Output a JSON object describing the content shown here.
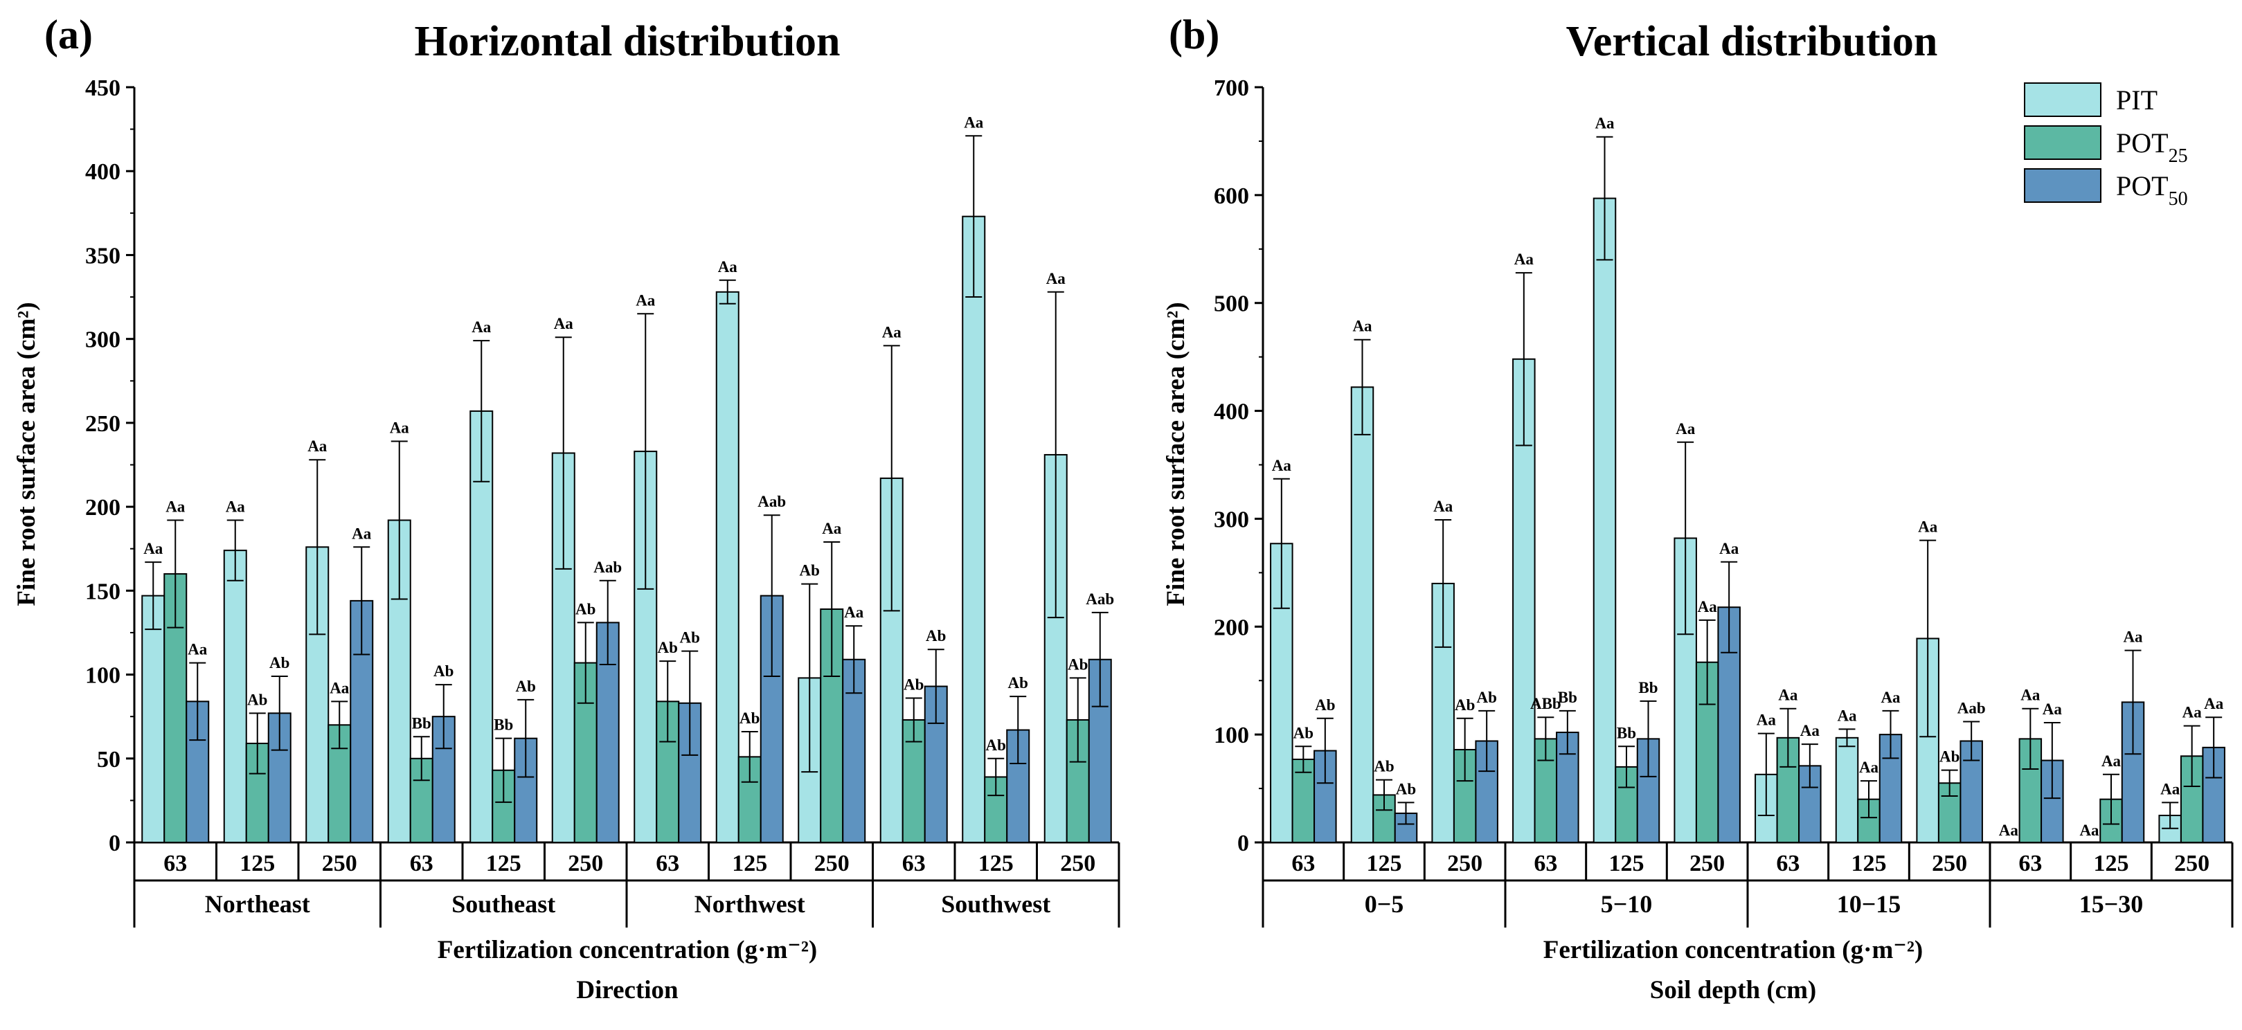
{
  "colors": {
    "PIT": "#a6e3e6",
    "POT25": "#5cb8a3",
    "POT50": "#5e93c0",
    "stroke": "#000000"
  },
  "legend": [
    {
      "key": "PIT",
      "base": "PIT",
      "sub": ""
    },
    {
      "key": "POT25",
      "base": "POT",
      "sub": "25"
    },
    {
      "key": "POT50",
      "base": "POT",
      "sub": "50"
    }
  ],
  "chart_data": [
    {
      "type": "bar",
      "panel": "(a)",
      "title": "Horizontal distribution",
      "ylabel": "Fine root surface area (cm²)",
      "xlabel": "Fertilization concentration (g·m⁻²)",
      "xlabel2": "Direction",
      "ylim": [
        0,
        450
      ],
      "yticks": [
        0,
        50,
        100,
        150,
        200,
        250,
        300,
        350,
        400,
        450
      ],
      "groups": [
        "Northeast",
        "Southeast",
        "Northwest",
        "Southwest"
      ],
      "categories": [
        "63",
        "125",
        "250",
        "63",
        "125",
        "250",
        "63",
        "125",
        "250",
        "63",
        "125",
        "250"
      ],
      "series": [
        {
          "name": "PIT",
          "values": [
            147,
            174,
            176,
            192,
            257,
            232,
            233,
            328,
            98,
            217,
            373,
            231
          ],
          "errors": [
            20,
            18,
            52,
            47,
            42,
            69,
            82,
            7,
            56,
            79,
            48,
            97
          ],
          "labels": [
            "Aa",
            "Aa",
            "Aa",
            "Aa",
            "Aa",
            "Aa",
            "Aa",
            "Aa",
            "Ab",
            "Aa",
            "Aa",
            "Aa"
          ]
        },
        {
          "name": "POT25",
          "values": [
            160,
            59,
            70,
            50,
            43,
            107,
            84,
            51,
            139,
            73,
            39,
            73
          ],
          "errors": [
            32,
            18,
            14,
            13,
            19,
            24,
            24,
            15,
            40,
            13,
            11,
            25
          ],
          "labels": [
            "Aa",
            "Ab",
            "Aa",
            "Bb",
            "Bb",
            "Ab",
            "Ab",
            "Ab",
            "Aa",
            "Ab",
            "Ab",
            "Ab"
          ]
        },
        {
          "name": "POT50",
          "values": [
            84,
            77,
            144,
            75,
            62,
            131,
            83,
            147,
            109,
            93,
            67,
            109
          ],
          "errors": [
            23,
            22,
            32,
            19,
            23,
            25,
            31,
            48,
            20,
            22,
            20,
            28
          ],
          "labels": [
            "Aa",
            "Ab",
            "Aa",
            "Ab",
            "Ab",
            "Aab",
            "Ab",
            "Aab",
            "Aa",
            "Ab",
            "Ab",
            "Aab"
          ]
        }
      ]
    },
    {
      "type": "bar",
      "panel": "(b)",
      "title": "Vertical distribution",
      "ylabel": "Fine root surface area (cm²)",
      "xlabel": "Fertilization concentration (g·m⁻²)",
      "xlabel2": "Soil depth (cm)",
      "ylim": [
        0,
        700
      ],
      "yticks": [
        0,
        100,
        200,
        300,
        400,
        500,
        600,
        700
      ],
      "groups": [
        "0−5",
        "5−10",
        "10−15",
        "15−30"
      ],
      "categories": [
        "63",
        "125",
        "250",
        "63",
        "125",
        "250",
        "63",
        "125",
        "250",
        "63",
        "125",
        "250"
      ],
      "series": [
        {
          "name": "PIT",
          "values": [
            277,
            422,
            240,
            448,
            597,
            282,
            63,
            97,
            189,
            0,
            0,
            25
          ],
          "errors": [
            60,
            44,
            59,
            80,
            57,
            89,
            38,
            8,
            91,
            0,
            0,
            12
          ],
          "labels": [
            "Aa",
            "Aa",
            "Aa",
            "Aa",
            "Aa",
            "Aa",
            "Aa",
            "Aa",
            "Aa",
            "Aa",
            "Aa",
            "Aa"
          ]
        },
        {
          "name": "POT25",
          "values": [
            77,
            44,
            86,
            96,
            70,
            167,
            97,
            40,
            55,
            96,
            40,
            80
          ],
          "errors": [
            12,
            14,
            29,
            20,
            19,
            39,
            27,
            17,
            12,
            28,
            23,
            28
          ],
          "labels": [
            "Ab",
            "Ab",
            "Ab",
            "ABb",
            "Bb",
            "Aa",
            "Aa",
            "Aa",
            "Ab",
            "Aa",
            "Aa",
            "Aa"
          ]
        },
        {
          "name": "POT50",
          "values": [
            85,
            27,
            94,
            102,
            96,
            218,
            71,
            100,
            94,
            76,
            130,
            88
          ],
          "errors": [
            30,
            10,
            28,
            20,
            35,
            42,
            20,
            22,
            18,
            35,
            48,
            28
          ],
          "labels": [
            "Ab",
            "Ab",
            "Ab",
            "Bb",
            "Bb",
            "Aa",
            "Aa",
            "Aa",
            "Aab",
            "Aa",
            "Aa",
            "Aa"
          ]
        }
      ]
    }
  ]
}
